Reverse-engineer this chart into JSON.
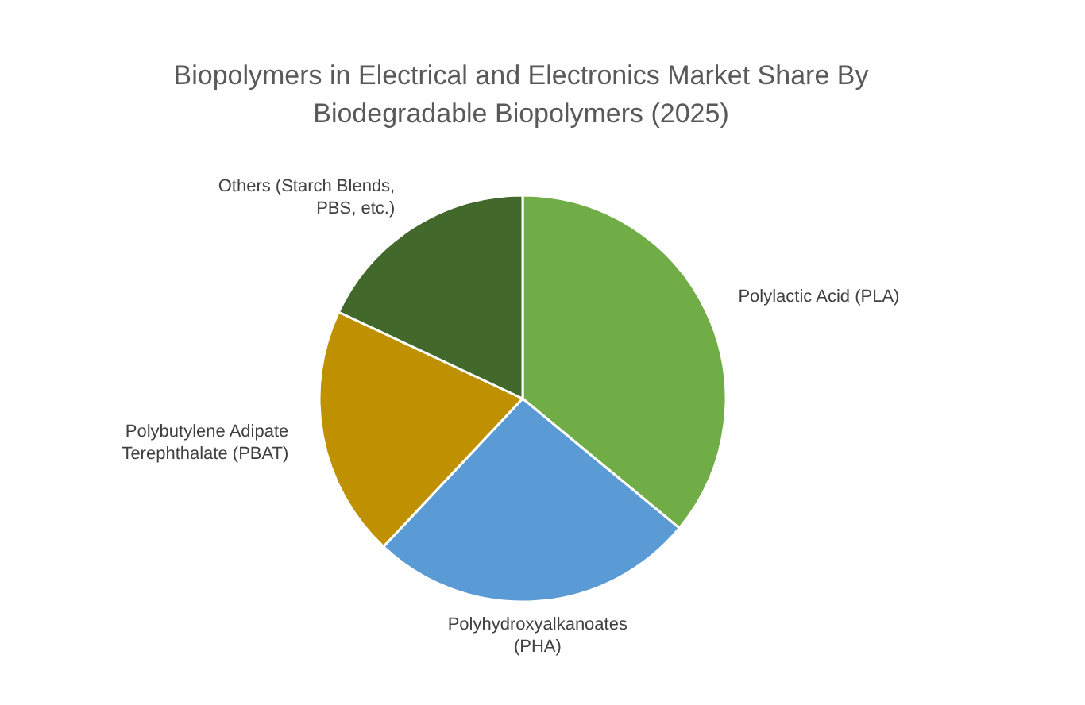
{
  "chart_data": {
    "type": "pie",
    "title": "Biopolymers in Electrical and Electronics Market Share By Biodegradable Biopolymers (2025)",
    "categories": [
      "Polylactic Acid (PLA)",
      "Polyhydroxyalkanoates (PHA)",
      "Polybutylene Adipate Terephthalate (PBAT)",
      "Others (Starch Blends, PBS, etc.)"
    ],
    "values": [
      36,
      26,
      20,
      18
    ],
    "colors": [
      "#70ad47",
      "#5b9bd5",
      "#bf9000",
      "#43682b"
    ],
    "legend": false
  }
}
